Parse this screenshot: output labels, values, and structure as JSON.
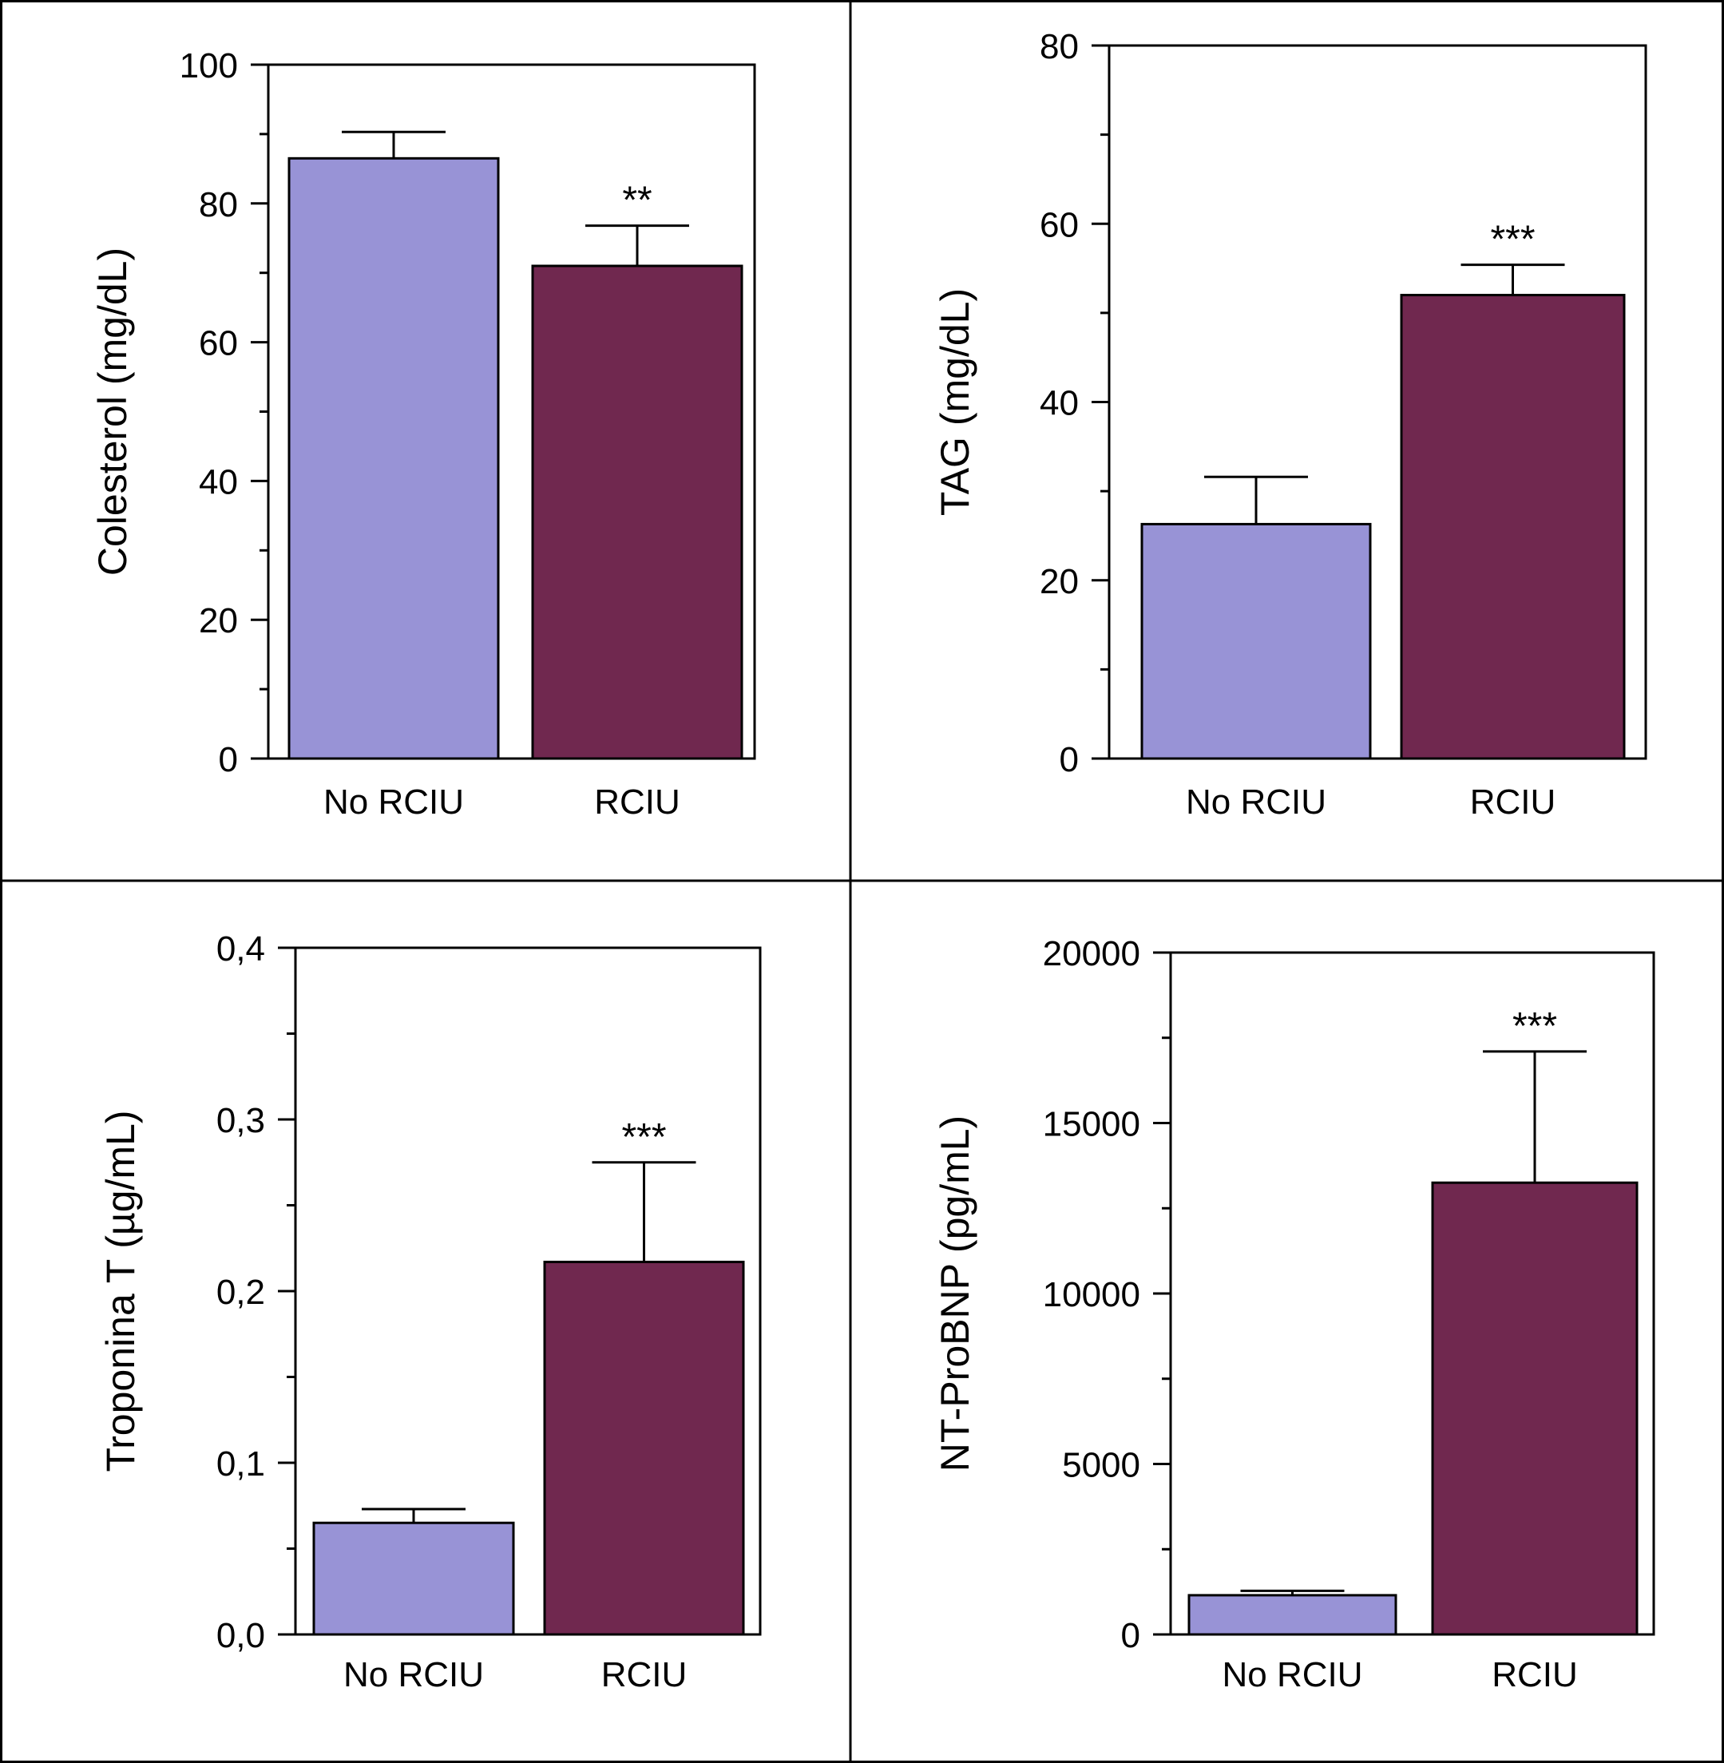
{
  "colors": {
    "no_rciu": "#9893d6",
    "rciu": "#70284f",
    "axis": "#000000",
    "background": "#ffffff"
  },
  "chart_data": [
    {
      "type": "bar",
      "ylabel": "Colesterol (mg/dL)",
      "categories": [
        "No RCIU",
        "RCIU"
      ],
      "values": [
        86.5,
        71
      ],
      "errors": [
        3.8,
        5.8
      ],
      "significance": [
        "",
        "**"
      ],
      "ylim": [
        0,
        100
      ],
      "yticks": [
        0,
        20,
        40,
        60,
        80,
        100
      ],
      "ytick_labels": [
        "0",
        "20",
        "40",
        "60",
        "80",
        "100"
      ],
      "minor_step": 10,
      "grid": false
    },
    {
      "type": "bar",
      "ylabel": "TAG (mg/dL)",
      "categories": [
        "No RCIU",
        "RCIU"
      ],
      "values": [
        26.3,
        52
      ],
      "errors": [
        5.3,
        3.4
      ],
      "significance": [
        "",
        "***"
      ],
      "ylim": [
        0,
        80
      ],
      "yticks": [
        0,
        20,
        40,
        60,
        80
      ],
      "ytick_labels": [
        "0",
        "20",
        "40",
        "60",
        "80"
      ],
      "minor_step": 10,
      "grid": false
    },
    {
      "type": "bar",
      "ylabel": "Troponina T (µg/mL)",
      "categories": [
        "No RCIU",
        "RCIU"
      ],
      "values": [
        0.065,
        0.217
      ],
      "errors": [
        0.008,
        0.058
      ],
      "significance": [
        "",
        "***"
      ],
      "ylim": [
        0,
        0.4
      ],
      "yticks": [
        0,
        0.1,
        0.2,
        0.3,
        0.4
      ],
      "ytick_labels": [
        "0,0",
        "0,1",
        "0,2",
        "0,3",
        "0,4"
      ],
      "minor_step": 0.05,
      "grid": false
    },
    {
      "type": "bar",
      "ylabel": "NT-ProBNP (pg/mL)",
      "categories": [
        "No RCIU",
        "RCIU"
      ],
      "values": [
        1150,
        13250
      ],
      "errors": [
        130,
        3850
      ],
      "significance": [
        "",
        "***"
      ],
      "ylim": [
        0,
        20000
      ],
      "yticks": [
        0,
        5000,
        10000,
        15000,
        20000
      ],
      "ytick_labels": [
        "0",
        "5000",
        "10000",
        "15000",
        "20000"
      ],
      "minor_step": 2500,
      "grid": false
    }
  ]
}
